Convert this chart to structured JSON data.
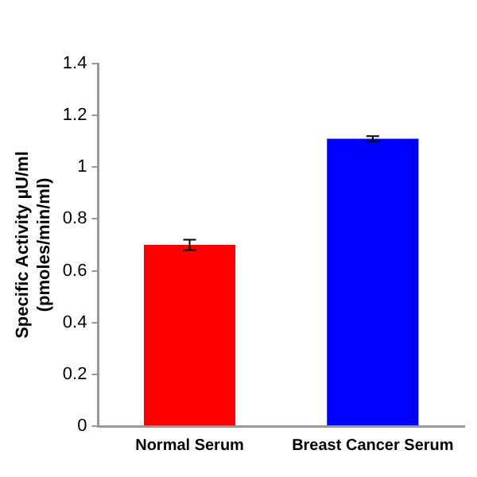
{
  "chart_data": {
    "type": "bar",
    "ylabel": "Specific Activity µU/ml\n(pmoles/min/ml)",
    "categories": [
      "Normal Serum",
      "Breast Cancer Serum"
    ],
    "values": [
      0.7,
      1.11
    ],
    "colors": [
      "#ff0000",
      "#0000ff"
    ],
    "errors": [
      0.02,
      0.01
    ],
    "ylim": [
      0,
      1.4
    ],
    "yticks": [
      0,
      0.2,
      0.4,
      0.6,
      0.8,
      1,
      1.2,
      1.4
    ],
    "grid": false,
    "legend": false
  }
}
